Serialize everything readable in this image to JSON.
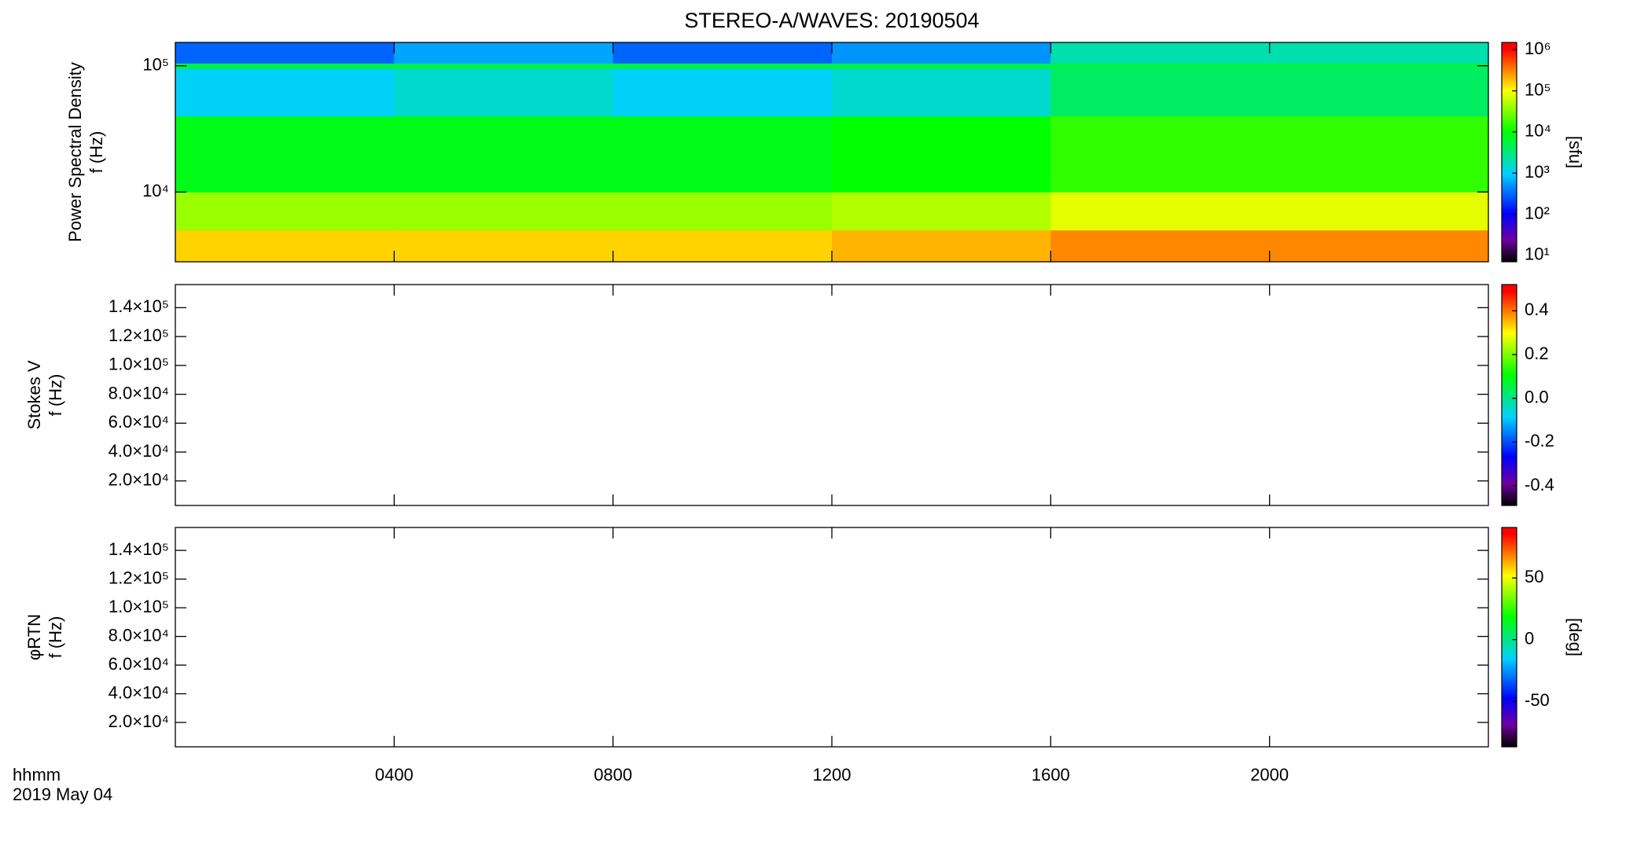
{
  "title": "STEREO-A/WAVES: 20190504",
  "x_label": "hhmm",
  "date": "2019 May 04",
  "xlim": [
    0,
    24
  ],
  "xticks": [
    {
      "value": 4,
      "label": "0400"
    },
    {
      "value": 8,
      "label": "0800"
    },
    {
      "value": 12,
      "label": "1200"
    },
    {
      "value": 16,
      "label": "1600"
    },
    {
      "value": 20,
      "label": "2000"
    }
  ],
  "colormap": [
    "#000000",
    "#7000a0",
    "#0000ff",
    "#00d0ff",
    "#00ff00",
    "#ffff00",
    "#ff0000"
  ],
  "chart_data": [
    {
      "type": "heatmap",
      "ylabel": [
        "Power Spectral Density",
        "f (Hz)"
      ],
      "ylog": true,
      "ylim": [
        2800,
        153000
      ],
      "yticks": [
        {
          "value": 10000,
          "label": "10⁴"
        },
        {
          "value": 100000,
          "label": "10⁵"
        }
      ],
      "x_bins": [
        0,
        4,
        8,
        12,
        16,
        20,
        24
      ],
      "y_bins": [
        2800,
        5000,
        10000,
        40000,
        95000,
        105000,
        153000
      ],
      "z": [
        [
          150000,
          150000,
          150000,
          200000,
          300000,
          300000
        ],
        [
          40000,
          40000,
          40000,
          50000,
          80000,
          80000
        ],
        [
          8000,
          8000,
          8000,
          10000,
          15000,
          15000
        ],
        [
          1000,
          1500,
          1000,
          1500,
          4000,
          4000
        ],
        [
          5000,
          5000,
          5000,
          5000,
          5000,
          5000
        ],
        [
          300,
          600,
          300,
          500,
          2000,
          2000
        ]
      ],
      "zlog": true,
      "zlim": [
        7,
        1500000
      ],
      "zticks": [
        {
          "value": 10,
          "label": "10¹"
        },
        {
          "value": 100,
          "label": "10²"
        },
        {
          "value": 1000,
          "label": "10³"
        },
        {
          "value": 10000,
          "label": "10⁴"
        },
        {
          "value": 100000,
          "label": "10⁵"
        },
        {
          "value": 1000000,
          "label": "10⁶"
        }
      ],
      "zlabel": "[sfu]"
    },
    {
      "type": "heatmap",
      "ylabel": [
        "Stokes V",
        "f (Hz)"
      ],
      "ylog": false,
      "ylim": [
        3000,
        156000
      ],
      "yticks": [
        {
          "value": 20000,
          "label": "2.0×10⁴"
        },
        {
          "value": 40000,
          "label": "4.0×10⁴"
        },
        {
          "value": 60000,
          "label": "6.0×10⁴"
        },
        {
          "value": 80000,
          "label": "8.0×10⁴"
        },
        {
          "value": 100000,
          "label": "1.0×10⁵"
        },
        {
          "value": 120000,
          "label": "1.2×10⁵"
        },
        {
          "value": 140000,
          "label": "1.4×10⁵"
        }
      ],
      "zlog": false,
      "zlim": [
        -0.49,
        0.52
      ],
      "zticks": [
        -0.4,
        -0.2,
        {
          "value": 0,
          "label": "0.0"
        },
        0.2,
        0.4
      ]
    },
    {
      "type": "heatmap",
      "ylabel": [
        "φRTN",
        "f (Hz)"
      ],
      "ylog": false,
      "ylim": [
        3000,
        156000
      ],
      "yticks": [
        {
          "value": 20000,
          "label": "2.0×10⁴"
        },
        {
          "value": 40000,
          "label": "4.0×10⁴"
        },
        {
          "value": 60000,
          "label": "6.0×10⁴"
        },
        {
          "value": 80000,
          "label": "8.0×10⁴"
        },
        {
          "value": 100000,
          "label": "1.0×10⁵"
        },
        {
          "value": 120000,
          "label": "1.2×10⁵"
        },
        {
          "value": 140000,
          "label": "1.4×10⁵"
        }
      ],
      "zlog": false,
      "zlim": [
        -87,
        91
      ],
      "zticks": [
        -50,
        0,
        50
      ],
      "zlabel": "[deg]"
    }
  ]
}
